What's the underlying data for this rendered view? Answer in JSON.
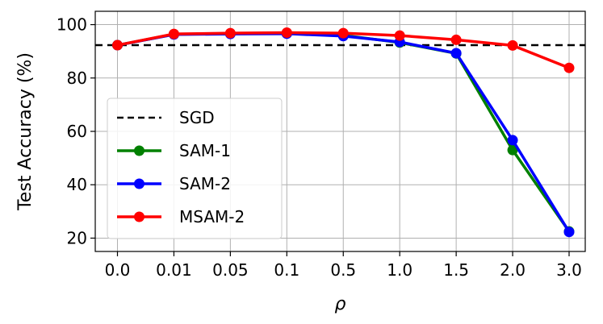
{
  "chart_data": {
    "type": "line",
    "xlabel": "ρ",
    "ylabel": "Test Accuracy (%)",
    "categories": [
      "0.0",
      "0.01",
      "0.05",
      "0.1",
      "0.5",
      "1.0",
      "1.5",
      "2.0",
      "3.0"
    ],
    "ylim": [
      15,
      105
    ],
    "yticks": [
      20,
      40,
      60,
      80,
      100
    ],
    "grid": true,
    "legend_position": "lower-left",
    "baseline": {
      "name": "SGD",
      "value": 92.3,
      "color": "#000000",
      "style": "dashed"
    },
    "series": [
      {
        "name": "SAM-1",
        "color": "#008000",
        "values": [
          92.3,
          96.4,
          96.6,
          96.7,
          96.0,
          93.3,
          89.2,
          53.0,
          22.5
        ]
      },
      {
        "name": "SAM-2",
        "color": "#0000ff",
        "values": [
          92.3,
          96.3,
          96.5,
          96.6,
          95.7,
          93.5,
          89.3,
          56.7,
          22.3
        ]
      },
      {
        "name": "MSAM-2",
        "color": "#ff0000",
        "values": [
          92.3,
          96.5,
          96.8,
          97.0,
          96.8,
          95.9,
          94.3,
          92.2,
          83.8
        ]
      }
    ]
  }
}
